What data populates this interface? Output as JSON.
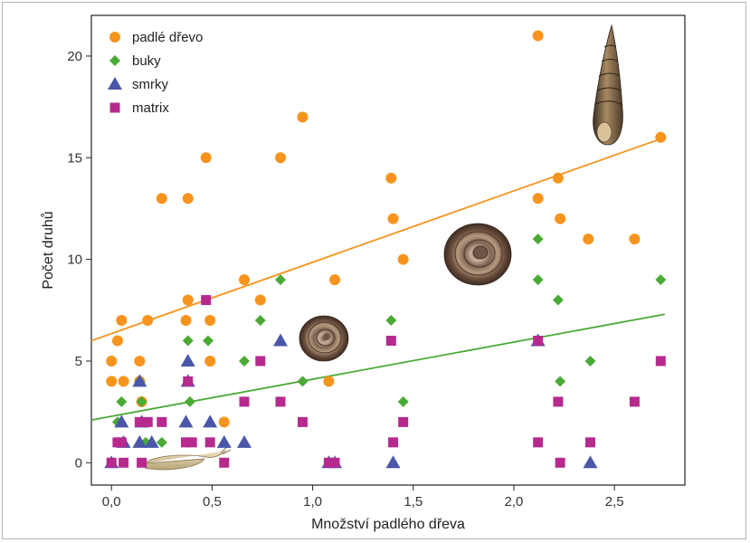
{
  "chart_data": {
    "type": "scatter",
    "xlabel": "Množství padlého dřeva",
    "ylabel": "Počet druhů",
    "xlim": [
      -0.1,
      2.85
    ],
    "ylim": [
      -1.1,
      22
    ],
    "x_ticks": [
      0,
      0.5,
      1,
      1.5,
      2,
      2.5
    ],
    "x_tick_labels": [
      "0,0",
      "0,5",
      "1,0",
      "1,5",
      "2,0",
      "2,5"
    ],
    "y_ticks": [
      0,
      5,
      10,
      15,
      20
    ],
    "y_tick_labels": [
      "0",
      "5",
      "10",
      "15",
      "20"
    ],
    "grid": false,
    "legend_position": "top-left",
    "series": [
      {
        "name": "padlé dřevo",
        "marker": "circle",
        "color": "#f7941d",
        "trendline": [
          [
            -0.1,
            6.0
          ],
          [
            2.75,
            16.0
          ]
        ],
        "points": [
          [
            0.0,
            5
          ],
          [
            0.0,
            4
          ],
          [
            0.03,
            6
          ],
          [
            0.05,
            7
          ],
          [
            0.06,
            4
          ],
          [
            0.14,
            5
          ],
          [
            0.14,
            4
          ],
          [
            0.15,
            3
          ],
          [
            0.18,
            7
          ],
          [
            0.25,
            13
          ],
          [
            0.37,
            7
          ],
          [
            0.38,
            13
          ],
          [
            0.38,
            8
          ],
          [
            0.47,
            15
          ],
          [
            0.49,
            7
          ],
          [
            0.49,
            5
          ],
          [
            0.56,
            2
          ],
          [
            0.66,
            9
          ],
          [
            0.74,
            8
          ],
          [
            0.84,
            15
          ],
          [
            0.95,
            17
          ],
          [
            1.08,
            4
          ],
          [
            1.11,
            9
          ],
          [
            1.39,
            14
          ],
          [
            1.4,
            12
          ],
          [
            1.45,
            10
          ],
          [
            2.12,
            21
          ],
          [
            2.12,
            13
          ],
          [
            2.22,
            14
          ],
          [
            2.23,
            12
          ],
          [
            2.37,
            11
          ],
          [
            2.6,
            11
          ],
          [
            2.73,
            16
          ]
        ]
      },
      {
        "name": "buky",
        "marker": "diamond",
        "color": "#4aaa35",
        "trendline": [
          [
            -0.1,
            2.1
          ],
          [
            2.75,
            7.3
          ]
        ],
        "points": [
          [
            0.0,
            0
          ],
          [
            0.03,
            2
          ],
          [
            0.05,
            3
          ],
          [
            0.14,
            4
          ],
          [
            0.15,
            3
          ],
          [
            0.17,
            1
          ],
          [
            0.25,
            1
          ],
          [
            0.38,
            6
          ],
          [
            0.38,
            4
          ],
          [
            0.39,
            3
          ],
          [
            0.48,
            6
          ],
          [
            0.66,
            5
          ],
          [
            0.74,
            7
          ],
          [
            0.84,
            9
          ],
          [
            0.95,
            4
          ],
          [
            1.39,
            7
          ],
          [
            1.45,
            3
          ],
          [
            2.12,
            11
          ],
          [
            2.12,
            9
          ],
          [
            2.22,
            8
          ],
          [
            2.23,
            4
          ],
          [
            2.38,
            5
          ],
          [
            2.73,
            9
          ]
        ]
      },
      {
        "name": "smrky",
        "marker": "triangle",
        "color": "#4a57a8",
        "points": [
          [
            0.0,
            0
          ],
          [
            0.05,
            2
          ],
          [
            0.06,
            1
          ],
          [
            0.14,
            4
          ],
          [
            0.14,
            1
          ],
          [
            0.15,
            2
          ],
          [
            0.2,
            1
          ],
          [
            0.37,
            2
          ],
          [
            0.38,
            5
          ],
          [
            0.38,
            4
          ],
          [
            0.49,
            2
          ],
          [
            0.56,
            1
          ],
          [
            0.66,
            1
          ],
          [
            0.84,
            6
          ],
          [
            1.08,
            0
          ],
          [
            1.11,
            0
          ],
          [
            1.4,
            0
          ],
          [
            2.12,
            6
          ],
          [
            2.38,
            0
          ]
        ]
      },
      {
        "name": "matrix",
        "marker": "square",
        "color": "#b62a8e",
        "points": [
          [
            0.0,
            0
          ],
          [
            0.03,
            1
          ],
          [
            0.05,
            1
          ],
          [
            0.06,
            0
          ],
          [
            0.14,
            2
          ],
          [
            0.15,
            0
          ],
          [
            0.18,
            2
          ],
          [
            0.25,
            2
          ],
          [
            0.37,
            1
          ],
          [
            0.38,
            4
          ],
          [
            0.4,
            1
          ],
          [
            0.47,
            8
          ],
          [
            0.49,
            1
          ],
          [
            0.56,
            0
          ],
          [
            0.66,
            3
          ],
          [
            0.74,
            5
          ],
          [
            0.84,
            3
          ],
          [
            0.95,
            2
          ],
          [
            1.08,
            0
          ],
          [
            1.11,
            0
          ],
          [
            1.39,
            6
          ],
          [
            1.4,
            1
          ],
          [
            1.45,
            2
          ],
          [
            2.12,
            6
          ],
          [
            2.12,
            1
          ],
          [
            2.22,
            3
          ],
          [
            2.23,
            0
          ],
          [
            2.38,
            1
          ],
          [
            2.6,
            3
          ],
          [
            2.73,
            5
          ]
        ]
      }
    ]
  }
}
